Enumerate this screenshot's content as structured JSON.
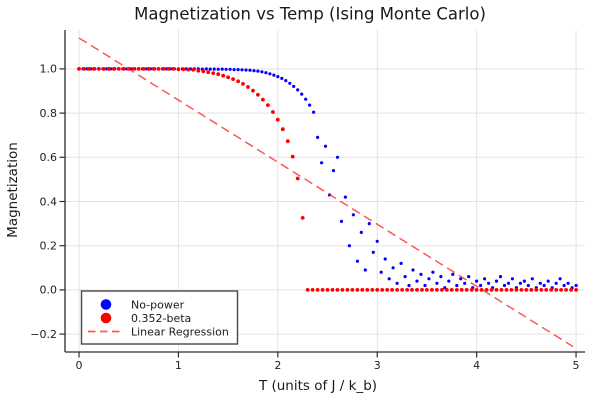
{
  "title": "Magnetization vs Temp (Ising Monte Carlo)",
  "colors": {
    "series_blue": "#0000ff",
    "series_red": "#ff0000",
    "regression_red": "#ff1f1f",
    "grid": "#e3e3e3",
    "spine": "#2b2b2b",
    "text": "#1a1a1a",
    "legend_border": "#484848",
    "background": "#ffffff"
  },
  "chart_data": {
    "type": "scatter",
    "title": "Magnetization vs Temp (Ising Monte Carlo)",
    "xlabel": "T (units of J / k_b)",
    "ylabel": "Magnetization",
    "xlim": [
      -0.141,
      5.09
    ],
    "ylim": [
      -0.281,
      1.176
    ],
    "xticks": [
      0,
      1,
      2,
      3,
      4,
      5
    ],
    "yticks": [
      -0.2,
      0.0,
      0.2,
      0.4,
      0.6,
      0.8,
      1.0
    ],
    "grid": true,
    "legend_position": "bottom-left",
    "series": [
      {
        "name": "No-power",
        "color": "#0000ff",
        "marker": "circle",
        "points": [
          [
            0,
            1
          ],
          [
            0.04,
            1
          ],
          [
            0.08,
            1
          ],
          [
            0.12,
            1
          ],
          [
            0.16,
            1
          ],
          [
            0.2,
            1
          ],
          [
            0.24,
            1
          ],
          [
            0.28,
            1
          ],
          [
            0.32,
            1
          ],
          [
            0.36,
            1
          ],
          [
            0.4,
            1
          ],
          [
            0.44,
            1
          ],
          [
            0.48,
            1
          ],
          [
            0.52,
            1
          ],
          [
            0.56,
            1
          ],
          [
            0.6,
            1
          ],
          [
            0.64,
            1
          ],
          [
            0.68,
            1
          ],
          [
            0.72,
            1
          ],
          [
            0.76,
            1
          ],
          [
            0.8,
            1
          ],
          [
            0.84,
            1
          ],
          [
            0.88,
            1
          ],
          [
            0.92,
            1
          ],
          [
            0.96,
            1
          ],
          [
            1,
            1
          ],
          [
            1.04,
            1
          ],
          [
            1.08,
            1
          ],
          [
            1.12,
            1
          ],
          [
            1.16,
            1
          ],
          [
            1.2,
            1
          ],
          [
            1.24,
            0.999
          ],
          [
            1.28,
            1
          ],
          [
            1.32,
            0.999
          ],
          [
            1.36,
            0.999
          ],
          [
            1.4,
            0.998
          ],
          [
            1.44,
            0.999
          ],
          [
            1.48,
            0.998
          ],
          [
            1.52,
            0.998
          ],
          [
            1.56,
            0.997
          ],
          [
            1.6,
            0.997
          ],
          [
            1.64,
            0.996
          ],
          [
            1.68,
            0.995
          ],
          [
            1.72,
            0.994
          ],
          [
            1.76,
            0.992
          ],
          [
            1.8,
            0.99
          ],
          [
            1.84,
            0.987
          ],
          [
            1.88,
            0.983
          ],
          [
            1.92,
            0.978
          ],
          [
            1.96,
            0.972
          ],
          [
            2,
            0.965
          ],
          [
            2.04,
            0.957
          ],
          [
            2.08,
            0.947
          ],
          [
            2.12,
            0.935
          ],
          [
            2.16,
            0.921
          ],
          [
            2.2,
            0.905
          ],
          [
            2.24,
            0.886
          ],
          [
            2.28,
            0.863
          ],
          [
            2.32,
            0.836
          ],
          [
            2.36,
            0.804
          ],
          [
            2.4,
            0.69
          ],
          [
            2.44,
            0.575
          ],
          [
            2.48,
            0.65
          ],
          [
            2.52,
            0.43
          ],
          [
            2.56,
            0.54
          ],
          [
            2.6,
            0.6
          ],
          [
            2.64,
            0.31
          ],
          [
            2.68,
            0.42
          ],
          [
            2.72,
            0.2
          ],
          [
            2.76,
            0.34
          ],
          [
            2.8,
            0.13
          ],
          [
            2.84,
            0.26
          ],
          [
            2.88,
            0.09
          ],
          [
            2.92,
            0.3
          ],
          [
            2.96,
            0.17
          ],
          [
            3,
            0.22
          ],
          [
            3.04,
            0.08
          ],
          [
            3.08,
            0.14
          ],
          [
            3.12,
            0.05
          ],
          [
            3.16,
            0.1
          ],
          [
            3.2,
            0.03
          ],
          [
            3.24,
            0.12
          ],
          [
            3.28,
            0.06
          ],
          [
            3.32,
            0.02
          ],
          [
            3.36,
            0.09
          ],
          [
            3.4,
            0.04
          ],
          [
            3.44,
            0.07
          ],
          [
            3.48,
            0.02
          ],
          [
            3.52,
            0.05
          ],
          [
            3.56,
            0.08
          ],
          [
            3.6,
            0.03
          ],
          [
            3.64,
            0.06
          ],
          [
            3.68,
            0.01
          ],
          [
            3.72,
            0.04
          ],
          [
            3.76,
            0.07
          ],
          [
            3.8,
            0.02
          ],
          [
            3.84,
            0.05
          ],
          [
            3.88,
            0.03
          ],
          [
            3.92,
            0.06
          ],
          [
            3.96,
            0.01
          ],
          [
            4,
            0.04
          ],
          [
            4.04,
            0.02
          ],
          [
            4.08,
            0.05
          ],
          [
            4.12,
            0.03
          ],
          [
            4.16,
            0.01
          ],
          [
            4.2,
            0.04
          ],
          [
            4.24,
            0.06
          ],
          [
            4.28,
            0.02
          ],
          [
            4.32,
            0.03
          ],
          [
            4.36,
            0.05
          ],
          [
            4.4,
            0.01
          ],
          [
            4.44,
            0.03
          ],
          [
            4.48,
            0.04
          ],
          [
            4.52,
            0.02
          ],
          [
            4.56,
            0.05
          ],
          [
            4.6,
            0.01
          ],
          [
            4.64,
            0.03
          ],
          [
            4.68,
            0.02
          ],
          [
            4.72,
            0.04
          ],
          [
            4.76,
            0.01
          ],
          [
            4.8,
            0.03
          ],
          [
            4.84,
            0.05
          ],
          [
            4.88,
            0.02
          ],
          [
            4.92,
            0.03
          ],
          [
            4.96,
            0.01
          ],
          [
            5,
            0.02
          ]
        ]
      },
      {
        "name": "0.352-beta",
        "color": "#ff0000",
        "marker": "circle",
        "points": [
          [
            0,
            1
          ],
          [
            0.05,
            1
          ],
          [
            0.1,
            1
          ],
          [
            0.15,
            1
          ],
          [
            0.2,
            1
          ],
          [
            0.25,
            1
          ],
          [
            0.3,
            1
          ],
          [
            0.35,
            1
          ],
          [
            0.4,
            1
          ],
          [
            0.45,
            1
          ],
          [
            0.5,
            1
          ],
          [
            0.55,
            1
          ],
          [
            0.6,
            1
          ],
          [
            0.65,
            1
          ],
          [
            0.7,
            1
          ],
          [
            0.75,
            1
          ],
          [
            0.8,
            1
          ],
          [
            0.85,
            1
          ],
          [
            0.9,
            1
          ],
          [
            0.95,
            1
          ],
          [
            1,
            0.998
          ],
          [
            1.05,
            0.998
          ],
          [
            1.1,
            0.997
          ],
          [
            1.15,
            0.996
          ],
          [
            1.2,
            0.992
          ],
          [
            1.25,
            0.989
          ],
          [
            1.3,
            0.985
          ],
          [
            1.35,
            0.981
          ],
          [
            1.4,
            0.976
          ],
          [
            1.45,
            0.969
          ],
          [
            1.5,
            0.962
          ],
          [
            1.55,
            0.954
          ],
          [
            1.6,
            0.944
          ],
          [
            1.65,
            0.932
          ],
          [
            1.7,
            0.918
          ],
          [
            1.75,
            0.902
          ],
          [
            1.8,
            0.883
          ],
          [
            1.85,
            0.861
          ],
          [
            1.9,
            0.836
          ],
          [
            1.95,
            0.805
          ],
          [
            2,
            0.77
          ],
          [
            2.05,
            0.727
          ],
          [
            2.1,
            0.673
          ],
          [
            2.15,
            0.603
          ],
          [
            2.2,
            0.504
          ],
          [
            2.25,
            0.326
          ],
          [
            2.3,
            0
          ],
          [
            2.35,
            0
          ],
          [
            2.4,
            0
          ],
          [
            2.45,
            0
          ],
          [
            2.5,
            0
          ],
          [
            2.55,
            0
          ],
          [
            2.6,
            0
          ],
          [
            2.65,
            0
          ],
          [
            2.7,
            0
          ],
          [
            2.75,
            0
          ],
          [
            2.8,
            0
          ],
          [
            2.85,
            0
          ],
          [
            2.9,
            0
          ],
          [
            2.95,
            0
          ],
          [
            3,
            0
          ],
          [
            3.05,
            0
          ],
          [
            3.1,
            0
          ],
          [
            3.15,
            0
          ],
          [
            3.2,
            0
          ],
          [
            3.25,
            0
          ],
          [
            3.3,
            0
          ],
          [
            3.35,
            0
          ],
          [
            3.4,
            0
          ],
          [
            3.45,
            0
          ],
          [
            3.5,
            0
          ],
          [
            3.55,
            0
          ],
          [
            3.6,
            0
          ],
          [
            3.65,
            0
          ],
          [
            3.7,
            0
          ],
          [
            3.75,
            0
          ],
          [
            3.8,
            0
          ],
          [
            3.85,
            0
          ],
          [
            3.9,
            0
          ],
          [
            3.95,
            0
          ],
          [
            4,
            0
          ],
          [
            4.05,
            0
          ],
          [
            4.1,
            0
          ],
          [
            4.15,
            0
          ],
          [
            4.2,
            0
          ],
          [
            4.25,
            0
          ],
          [
            4.3,
            0
          ],
          [
            4.35,
            0
          ],
          [
            4.4,
            0
          ],
          [
            4.45,
            0
          ],
          [
            4.5,
            0
          ],
          [
            4.55,
            0
          ],
          [
            4.6,
            0
          ],
          [
            4.65,
            0
          ],
          [
            4.7,
            0
          ],
          [
            4.75,
            0
          ],
          [
            4.8,
            0
          ],
          [
            4.85,
            0
          ],
          [
            4.9,
            0
          ],
          [
            4.95,
            0
          ],
          [
            5,
            0
          ]
        ]
      }
    ],
    "regression": {
      "name": "Linear Regression",
      "color": "#ff1f1f",
      "style": "dashed",
      "slope": -0.281,
      "intercept": 1.14,
      "t_range": [
        0,
        4.97
      ]
    }
  },
  "legend": {
    "items": [
      {
        "label": "No-power",
        "marker": "blue-dot"
      },
      {
        "label": "0.352-beta",
        "marker": "red-dot"
      },
      {
        "label": "Linear Regression",
        "marker": "red-dashed-line"
      }
    ]
  }
}
